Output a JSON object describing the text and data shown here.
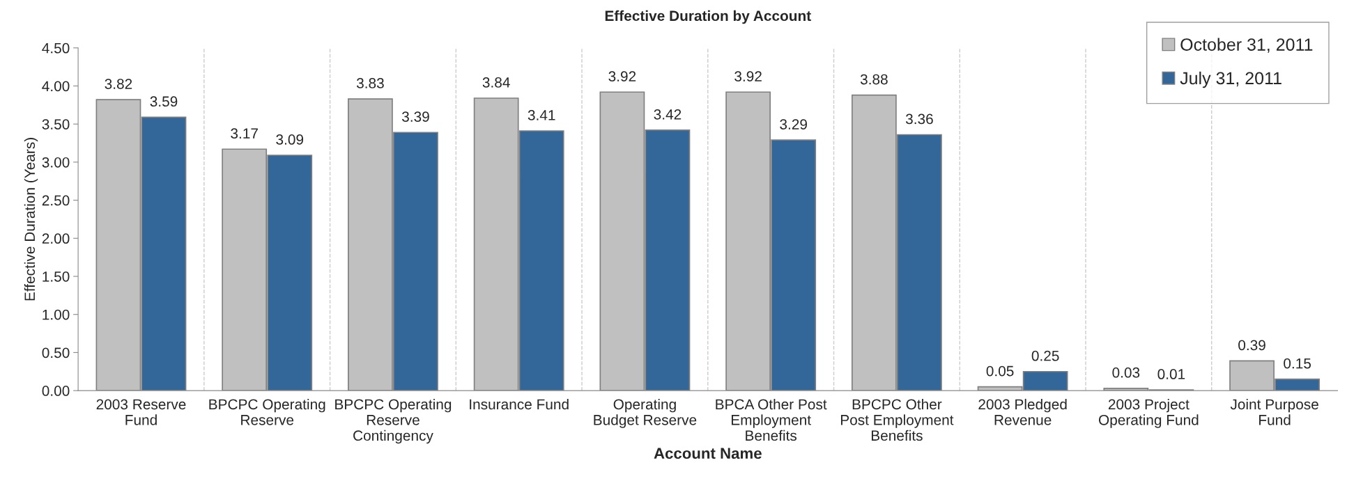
{
  "chart_data": {
    "type": "bar",
    "title": "Effective Duration by Account",
    "xlabel": "Account Name",
    "ylabel": "Effective Duration (Years)",
    "categories": [
      "2003 Reserve Fund",
      "BPCPC Operating Reserve",
      "BPCPC Operating Reserve Contingency",
      "Insurance Fund",
      "Operating Budget Reserve",
      "BPCA Other Post Employment Benefits",
      "BPCPC Other Post Employment Benefits",
      "2003 Pledged Revenue",
      "2003 Project Operating Fund",
      "Joint Purpose Fund"
    ],
    "series": [
      {
        "name": "October 31, 2011",
        "color": "#c0c0c0",
        "values": [
          3.82,
          3.17,
          3.83,
          3.84,
          3.92,
          3.92,
          3.88,
          0.05,
          0.03,
          0.39
        ]
      },
      {
        "name": "July 31, 2011",
        "color": "#336699",
        "values": [
          3.59,
          3.09,
          3.39,
          3.41,
          3.42,
          3.29,
          3.36,
          0.25,
          0.01,
          0.15
        ]
      }
    ],
    "ylim": [
      0,
      4.5
    ],
    "yticks": [
      {
        "value": 0,
        "label": "0.00"
      },
      {
        "value": 0.5,
        "label": "0.50"
      },
      {
        "value": 1,
        "label": "1.00"
      },
      {
        "value": 1.5,
        "label": "1.50"
      },
      {
        "value": 2,
        "label": "2.00"
      },
      {
        "value": 2.5,
        "label": "2.50"
      },
      {
        "value": 3,
        "label": "3.00"
      },
      {
        "value": 3.5,
        "label": "3.50"
      },
      {
        "value": 4,
        "label": "4.00"
      },
      {
        "value": 4.5,
        "label": "4.50"
      }
    ],
    "grid": "x",
    "legend": "top right",
    "data_labels": true
  }
}
